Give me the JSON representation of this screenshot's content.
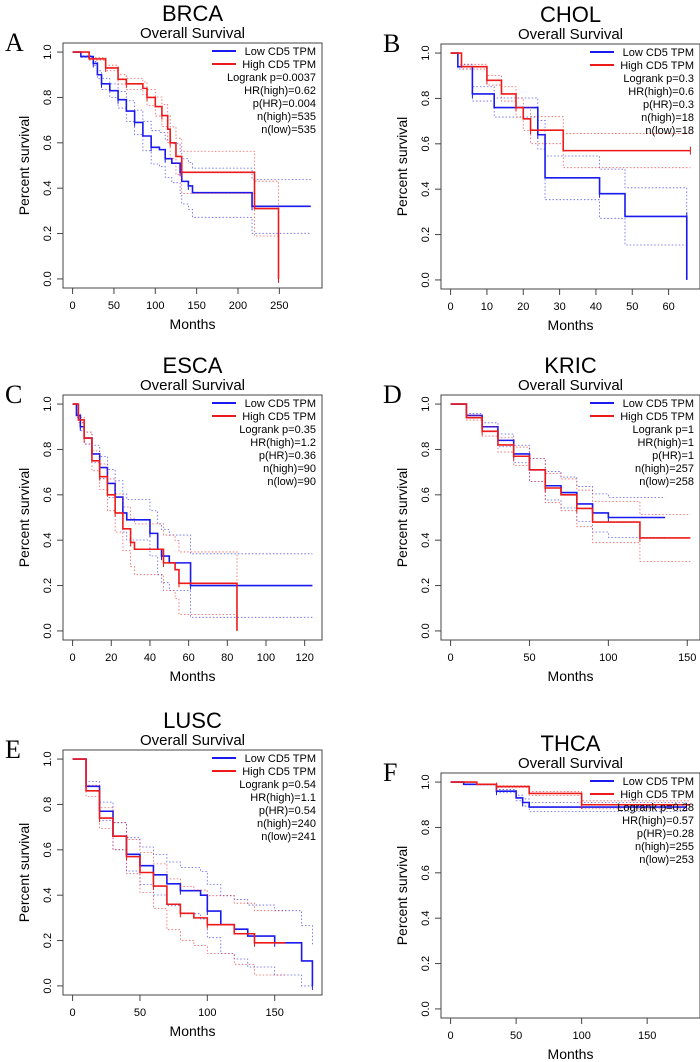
{
  "colors": {
    "low": "#1a1aee",
    "high": "#ee1a1a",
    "axis": "#444444"
  },
  "chart_data": [
    {
      "type": "line",
      "panel": "A",
      "title": "BRCA",
      "subtitle": "Overall Survival",
      "xlabel": "Months",
      "ylabel": "Percent survival",
      "xlim": [
        0,
        290
      ],
      "ylim": [
        0,
        1
      ],
      "xticks": [
        0,
        50,
        100,
        150,
        200,
        250
      ],
      "yticks": [
        "0.0",
        "0.2",
        "0.4",
        "0.6",
        "0.8",
        "1.0"
      ],
      "legend": [
        "Low CD5 TPM",
        "High CD5 TPM"
      ],
      "legend_position": "top-right",
      "stats": [
        "Logrank p=0.0037",
        "HR(high)=0.62",
        "p(HR)=0.004",
        "n(high)=535",
        "n(low)=535"
      ],
      "series": [
        {
          "name": "Low CD5 TPM",
          "points": [
            [
              0,
              1
            ],
            [
              10,
              0.98
            ],
            [
              25,
              0.95
            ],
            [
              30,
              0.9
            ],
            [
              35,
              0.86
            ],
            [
              45,
              0.83
            ],
            [
              55,
              0.79
            ],
            [
              65,
              0.74
            ],
            [
              75,
              0.69
            ],
            [
              85,
              0.63
            ],
            [
              95,
              0.58
            ],
            [
              105,
              0.57
            ],
            [
              112,
              0.53
            ],
            [
              120,
              0.51
            ],
            [
              130,
              0.47
            ],
            [
              132,
              0.43
            ],
            [
              140,
              0.41
            ],
            [
              145,
              0.38
            ],
            [
              217,
              0.32
            ],
            [
              288,
              0.32
            ]
          ]
        },
        {
          "name": "High CD5 TPM",
          "points": [
            [
              0,
              1
            ],
            [
              20,
              0.97
            ],
            [
              40,
              0.93
            ],
            [
              55,
              0.88
            ],
            [
              65,
              0.86
            ],
            [
              85,
              0.84
            ],
            [
              90,
              0.8
            ],
            [
              100,
              0.76
            ],
            [
              108,
              0.72
            ],
            [
              115,
              0.66
            ],
            [
              118,
              0.6
            ],
            [
              125,
              0.54
            ],
            [
              132,
              0.47
            ],
            [
              220,
              0.31
            ],
            [
              249,
              0
            ]
          ]
        }
      ]
    },
    {
      "type": "line",
      "panel": "B",
      "title": "CHOL",
      "subtitle": "Overall Survival",
      "xlabel": "Months",
      "ylabel": "Percent survival",
      "xlim": [
        0,
        66
      ],
      "ylim": [
        0,
        1
      ],
      "xticks": [
        0,
        10,
        20,
        30,
        40,
        50,
        60
      ],
      "yticks": [
        "0.0",
        "0.2",
        "0.4",
        "0.6",
        "0.8",
        "1.0"
      ],
      "legend": [
        "Low CD5 TPM",
        "High CD5 TPM"
      ],
      "legend_position": "top-right",
      "stats": [
        "Logrank p=0.3",
        "HR(high)=0.6",
        "p(HR)=0.3",
        "n(high)=18",
        "n(low)=18"
      ],
      "series": [
        {
          "name": "Low CD5 TPM",
          "points": [
            [
              0,
              1
            ],
            [
              2,
              0.94
            ],
            [
              6,
              0.82
            ],
            [
              12,
              0.76
            ],
            [
              24,
              0.64
            ],
            [
              26,
              0.45
            ],
            [
              41,
              0.38
            ],
            [
              48,
              0.28
            ],
            [
              65,
              0.28
            ],
            [
              65,
              0
            ]
          ]
        },
        {
          "name": "High CD5 TPM",
          "points": [
            [
              0,
              1
            ],
            [
              3,
              0.94
            ],
            [
              10,
              0.88
            ],
            [
              14,
              0.82
            ],
            [
              18,
              0.76
            ],
            [
              20,
              0.71
            ],
            [
              22,
              0.66
            ],
            [
              31,
              0.57
            ],
            [
              66,
              0.57
            ]
          ]
        }
      ]
    },
    {
      "type": "line",
      "panel": "C",
      "title": "ESCA",
      "subtitle": "Overall Survival",
      "xlabel": "Months",
      "ylabel": "Percent survival",
      "xlim": [
        0,
        124
      ],
      "ylim": [
        0,
        1
      ],
      "xticks": [
        0,
        20,
        40,
        60,
        80,
        100,
        120
      ],
      "yticks": [
        "0.0",
        "0.2",
        "0.4",
        "0.6",
        "0.8",
        "1.0"
      ],
      "legend": [
        "Low CD5 TPM",
        "High CD5 TPM"
      ],
      "legend_position": "top-right",
      "stats": [
        "Logrank p=0.35",
        "HR(high)=1.2",
        "p(HR)=0.36",
        "n(high)=90",
        "n(low)=90"
      ],
      "series": [
        {
          "name": "Low CD5 TPM",
          "points": [
            [
              0,
              1
            ],
            [
              2,
              0.95
            ],
            [
              4,
              0.9
            ],
            [
              6,
              0.85
            ],
            [
              10,
              0.78
            ],
            [
              14,
              0.72
            ],
            [
              18,
              0.65
            ],
            [
              22,
              0.59
            ],
            [
              26,
              0.52
            ],
            [
              28,
              0.49
            ],
            [
              40,
              0.43
            ],
            [
              44,
              0.36
            ],
            [
              46,
              0.33
            ],
            [
              50,
              0.3
            ],
            [
              61,
              0.2
            ],
            [
              124,
              0.2
            ]
          ]
        },
        {
          "name": "High CD5 TPM",
          "points": [
            [
              0,
              1
            ],
            [
              3,
              0.93
            ],
            [
              6,
              0.85
            ],
            [
              10,
              0.75
            ],
            [
              14,
              0.68
            ],
            [
              18,
              0.6
            ],
            [
              22,
              0.52
            ],
            [
              26,
              0.45
            ],
            [
              30,
              0.39
            ],
            [
              32,
              0.36
            ],
            [
              47,
              0.3
            ],
            [
              53,
              0.27
            ],
            [
              55,
              0.21
            ],
            [
              85,
              0
            ]
          ]
        }
      ]
    },
    {
      "type": "line",
      "panel": "D",
      "title": "KRIC",
      "subtitle": "Overall Survival",
      "xlabel": "Months",
      "ylabel": "Percent survival",
      "xlim": [
        0,
        152
      ],
      "ylim": [
        0,
        1
      ],
      "xticks": [
        0,
        50,
        100,
        150
      ],
      "yticks": [
        "0.0",
        "0.2",
        "0.4",
        "0.6",
        "0.8",
        "1.0"
      ],
      "legend": [
        "Low CD5 TPM",
        "High CD5 TPM"
      ],
      "legend_position": "top-right",
      "stats": [
        "Logrank p=1",
        "HR(high)=1",
        "p(HR)=1",
        "n(high)=257",
        "n(low)=258"
      ],
      "series": [
        {
          "name": "Low CD5 TPM",
          "points": [
            [
              0,
              1
            ],
            [
              10,
              0.95
            ],
            [
              20,
              0.9
            ],
            [
              30,
              0.84
            ],
            [
              40,
              0.78
            ],
            [
              50,
              0.71
            ],
            [
              60,
              0.64
            ],
            [
              70,
              0.61
            ],
            [
              80,
              0.56
            ],
            [
              90,
              0.52
            ],
            [
              100,
              0.5
            ],
            [
              136,
              0.5
            ]
          ]
        },
        {
          "name": "High CD5 TPM",
          "points": [
            [
              0,
              1
            ],
            [
              10,
              0.94
            ],
            [
              20,
              0.88
            ],
            [
              30,
              0.82
            ],
            [
              40,
              0.77
            ],
            [
              50,
              0.71
            ],
            [
              60,
              0.63
            ],
            [
              70,
              0.6
            ],
            [
              80,
              0.54
            ],
            [
              90,
              0.48
            ],
            [
              120,
              0.41
            ],
            [
              152,
              0.41
            ]
          ]
        }
      ]
    },
    {
      "type": "line",
      "panel": "E",
      "title": "LUSC",
      "subtitle": "Overall Survival",
      "xlabel": "Months",
      "ylabel": "Percent survival",
      "xlim": [
        0,
        178
      ],
      "ylim": [
        0,
        1
      ],
      "xticks": [
        0,
        50,
        100,
        150
      ],
      "yticks": [
        "0.0",
        "0.2",
        "0.4",
        "0.6",
        "0.8",
        "1.0"
      ],
      "legend": [
        "Low CD5 TPM",
        "High CD5 TPM"
      ],
      "legend_position": "top-right",
      "stats": [
        "Logrank p=0.54",
        "HR(high)=1.1",
        "p(HR)=0.54",
        "n(high)=240",
        "n(low)=241"
      ],
      "series": [
        {
          "name": "Low CD5 TPM",
          "points": [
            [
              0,
              1
            ],
            [
              10,
              0.88
            ],
            [
              20,
              0.77
            ],
            [
              30,
              0.66
            ],
            [
              40,
              0.58
            ],
            [
              50,
              0.53
            ],
            [
              60,
              0.49
            ],
            [
              70,
              0.45
            ],
            [
              80,
              0.42
            ],
            [
              95,
              0.4
            ],
            [
              100,
              0.33
            ],
            [
              110,
              0.27
            ],
            [
              120,
              0.25
            ],
            [
              130,
              0.22
            ],
            [
              150,
              0.19
            ],
            [
              170,
              0.11
            ],
            [
              178,
              0
            ]
          ]
        },
        {
          "name": "High CD5 TPM",
          "points": [
            [
              0,
              1
            ],
            [
              10,
              0.86
            ],
            [
              20,
              0.74
            ],
            [
              30,
              0.66
            ],
            [
              40,
              0.57
            ],
            [
              50,
              0.5
            ],
            [
              60,
              0.44
            ],
            [
              70,
              0.36
            ],
            [
              80,
              0.32
            ],
            [
              90,
              0.3
            ],
            [
              100,
              0.27
            ],
            [
              120,
              0.23
            ],
            [
              135,
              0.19
            ],
            [
              158,
              0.19
            ]
          ]
        }
      ]
    },
    {
      "type": "line",
      "panel": "F",
      "title": "THCA",
      "subtitle": "Overall Survival",
      "xlabel": "Months",
      "ylabel": "Percent survival",
      "xlim": [
        0,
        183
      ],
      "ylim": [
        0,
        1
      ],
      "xticks": [
        0,
        50,
        100,
        150
      ],
      "yticks": [
        "0.0",
        "0.2",
        "0.4",
        "0.6",
        "0.8",
        "1.0"
      ],
      "legend": [
        "Low CD5 TPM",
        "High CD5 TPM"
      ],
      "legend_position": "top-right",
      "stats": [
        "Logrank p=0.28",
        "HR(high)=0.57",
        "p(HR)=0.28",
        "n(high)=255",
        "n(low)=253"
      ],
      "series": [
        {
          "name": "Low CD5 TPM",
          "points": [
            [
              0,
              1
            ],
            [
              10,
              0.99
            ],
            [
              35,
              0.96
            ],
            [
              50,
              0.93
            ],
            [
              55,
              0.91
            ],
            [
              60,
              0.89
            ],
            [
              180,
              0.89
            ]
          ]
        },
        {
          "name": "High CD5 TPM",
          "points": [
            [
              0,
              1
            ],
            [
              20,
              0.99
            ],
            [
              35,
              0.98
            ],
            [
              60,
              0.95
            ],
            [
              100,
              0.9
            ],
            [
              183,
              0.9
            ]
          ]
        }
      ]
    }
  ]
}
